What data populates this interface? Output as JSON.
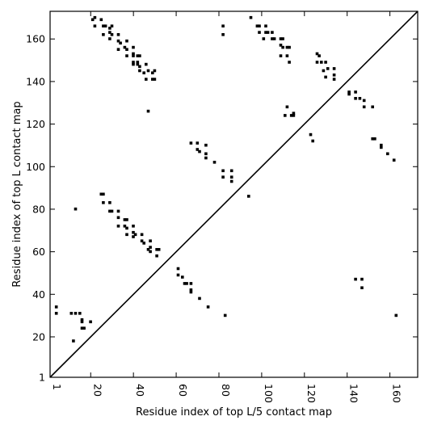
{
  "chart_data": {
    "type": "scatter",
    "xlabel": "Residue index of top L/5 contact map",
    "ylabel": "Residue index of top L contact map",
    "xlim": [
      1,
      173
    ],
    "ylim": [
      1,
      173
    ],
    "xticks": [
      1,
      20,
      40,
      60,
      80,
      100,
      120,
      140,
      160
    ],
    "yticks": [
      1,
      20,
      40,
      60,
      80,
      100,
      120,
      140,
      160
    ],
    "diagonal": true,
    "marker": "square",
    "color": "#000000",
    "upper_triangle_points": [
      [
        21,
        169
      ],
      [
        22,
        170
      ],
      [
        22,
        166
      ],
      [
        25,
        169
      ],
      [
        26,
        166
      ],
      [
        27,
        166
      ],
      [
        26,
        162
      ],
      [
        29,
        165
      ],
      [
        30,
        166
      ],
      [
        29,
        163
      ],
      [
        30,
        162
      ],
      [
        29,
        160
      ],
      [
        33,
        162
      ],
      [
        33,
        159
      ],
      [
        34,
        158
      ],
      [
        33,
        155
      ],
      [
        37,
        159
      ],
      [
        36,
        156
      ],
      [
        37,
        155
      ],
      [
        37,
        152
      ],
      [
        40,
        156
      ],
      [
        40,
        153
      ],
      [
        40,
        152
      ],
      [
        40,
        149
      ],
      [
        40,
        148
      ],
      [
        42,
        152
      ],
      [
        43,
        152
      ],
      [
        42,
        149
      ],
      [
        42,
        148
      ],
      [
        43,
        147
      ],
      [
        43,
        145
      ],
      [
        46,
        148
      ],
      [
        45,
        144
      ],
      [
        47,
        145
      ],
      [
        46,
        141
      ],
      [
        47,
        126
      ],
      [
        50,
        145
      ],
      [
        49,
        144
      ],
      [
        49,
        141
      ],
      [
        50,
        141
      ],
      [
        67,
        111
      ],
      [
        70,
        111
      ],
      [
        70,
        108
      ],
      [
        71,
        107
      ],
      [
        74,
        110
      ],
      [
        74,
        106
      ],
      [
        74,
        104
      ],
      [
        78,
        102
      ],
      [
        82,
        166
      ],
      [
        82,
        162
      ],
      [
        82,
        98
      ],
      [
        82,
        95
      ],
      [
        86,
        98
      ],
      [
        86,
        95
      ],
      [
        86,
        93
      ],
      [
        94,
        86
      ],
      [
        95,
        170
      ],
      [
        98,
        166
      ],
      [
        99,
        163
      ],
      [
        99,
        166
      ],
      [
        102,
        166
      ],
      [
        102,
        163
      ],
      [
        101,
        160
      ],
      [
        103,
        163
      ],
      [
        105,
        163
      ],
      [
        105,
        160
      ],
      [
        106,
        160
      ],
      [
        109,
        160
      ],
      [
        110,
        160
      ],
      [
        109,
        157
      ],
      [
        110,
        156
      ],
      [
        109,
        152
      ],
      [
        112,
        156
      ],
      [
        113,
        156
      ],
      [
        112,
        152
      ],
      [
        113,
        149
      ],
      [
        112,
        128
      ],
      [
        111,
        124
      ],
      [
        114,
        124
      ],
      [
        115,
        124
      ],
      [
        115,
        125
      ],
      [
        123,
        115
      ],
      [
        124,
        112
      ],
      [
        126,
        153
      ],
      [
        127,
        152
      ],
      [
        126,
        149
      ],
      [
        128,
        149
      ],
      [
        130,
        149
      ],
      [
        129,
        145
      ],
      [
        131,
        146
      ],
      [
        130,
        142
      ],
      [
        134,
        146
      ],
      [
        134,
        143
      ],
      [
        134,
        141
      ],
      [
        141,
        135
      ],
      [
        141,
        134
      ],
      [
        144,
        135
      ],
      [
        144,
        132
      ],
      [
        146,
        132
      ],
      [
        148,
        131
      ],
      [
        148,
        128
      ],
      [
        152,
        128
      ],
      [
        152,
        113
      ],
      [
        153,
        113
      ],
      [
        156,
        110
      ],
      [
        156,
        109
      ],
      [
        159,
        106
      ],
      [
        162,
        103
      ]
    ],
    "lower_triangle_points": [
      [
        4,
        34
      ],
      [
        4,
        31
      ],
      [
        11,
        31
      ],
      [
        13,
        31
      ],
      [
        15,
        31
      ],
      [
        16,
        28
      ],
      [
        16,
        27
      ],
      [
        16,
        24
      ],
      [
        17,
        24
      ],
      [
        20,
        27
      ],
      [
        12,
        18
      ],
      [
        13,
        80
      ],
      [
        25,
        87
      ],
      [
        26,
        87
      ],
      [
        26,
        83
      ],
      [
        29,
        83
      ],
      [
        29,
        79
      ],
      [
        30,
        79
      ],
      [
        33,
        79
      ],
      [
        33,
        76
      ],
      [
        33,
        72
      ],
      [
        36,
        75
      ],
      [
        37,
        75
      ],
      [
        36,
        72
      ],
      [
        37,
        71
      ],
      [
        37,
        68
      ],
      [
        40,
        72
      ],
      [
        40,
        69
      ],
      [
        40,
        67
      ],
      [
        41,
        68
      ],
      [
        44,
        68
      ],
      [
        44,
        65
      ],
      [
        45,
        64
      ],
      [
        48,
        65
      ],
      [
        48,
        62
      ],
      [
        47,
        61
      ],
      [
        48,
        60
      ],
      [
        51,
        61
      ],
      [
        52,
        61
      ],
      [
        51,
        58
      ],
      [
        61,
        52
      ],
      [
        61,
        49
      ],
      [
        63,
        48
      ],
      [
        64,
        45
      ],
      [
        65,
        45
      ],
      [
        67,
        45
      ],
      [
        67,
        42
      ],
      [
        67,
        41
      ],
      [
        71,
        38
      ],
      [
        75,
        34
      ],
      [
        83,
        30
      ],
      [
        144,
        47
      ],
      [
        147,
        47
      ],
      [
        147,
        43
      ],
      [
        163,
        30
      ]
    ]
  }
}
